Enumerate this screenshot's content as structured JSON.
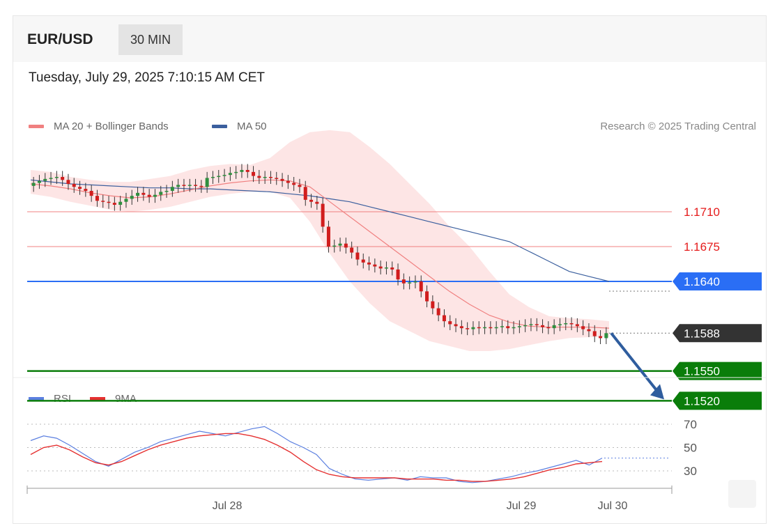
{
  "header": {
    "symbol": "EUR/USD",
    "timeframe": "30 MIN"
  },
  "datetime": "Tuesday, July 29, 2025 7:10:15 AM CET",
  "legend": {
    "ma20_bb": "MA 20 + Bollinger Bands",
    "ma50": "MA 50",
    "credit": "Research © 2025 Trading Central"
  },
  "rsi_legend": {
    "rsi": "RSI",
    "ma9": "9MA"
  },
  "colors": {
    "ma20": "#f08080",
    "ma50": "#3b5f9e",
    "bb_fill": "#fde0e0",
    "bull": "#2f8f3f",
    "bear": "#d11d1d",
    "resistance": "#f08080",
    "pivot": "#2a6ef5",
    "last": "#333333",
    "support": "#0a7d0a",
    "rsi": "#5b7fe0",
    "rsi_ma": "#e53030",
    "arrow": "#2f5d9e"
  },
  "chart_data": [
    {
      "type": "candlestick",
      "title": "EUR/USD",
      "timeframe": "30 MIN",
      "x_ticks": [
        "Jul 28",
        "Jul 29",
        "Jul 30"
      ],
      "levels": [
        {
          "value": 1.171,
          "label": "1.1710",
          "kind": "resistance"
        },
        {
          "value": 1.1675,
          "label": "1.1675",
          "kind": "resistance"
        },
        {
          "value": 1.164,
          "label": "1.1640",
          "kind": "pivot"
        },
        {
          "value": 1.1588,
          "label": "1.1588",
          "kind": "last"
        },
        {
          "value": 1.155,
          "label": "1.1550",
          "kind": "support"
        },
        {
          "value": 1.152,
          "label": "1.1520",
          "kind": "support"
        }
      ],
      "forecast": {
        "from": 1.1588,
        "to": 1.152,
        "direction": "down"
      },
      "closes": [
        1.1739,
        1.1741,
        1.1743,
        1.1744,
        1.1745,
        1.1742,
        1.1738,
        1.1735,
        1.1733,
        1.1731,
        1.1726,
        1.1721,
        1.172,
        1.1719,
        1.1717,
        1.172,
        1.1723,
        1.1726,
        1.1729,
        1.1727,
        1.1725,
        1.1727,
        1.173,
        1.1731,
        1.1735,
        1.1737,
        1.1736,
        1.1737,
        1.1736,
        1.1735,
        1.1744,
        1.1745,
        1.1746,
        1.1747,
        1.1749,
        1.175,
        1.1752,
        1.175,
        1.1746,
        1.1744,
        1.1745,
        1.1744,
        1.1743,
        1.1741,
        1.1739,
        1.1737,
        1.1735,
        1.1722,
        1.172,
        1.1718,
        1.1695,
        1.1675,
        1.1676,
        1.1678,
        1.1674,
        1.1669,
        1.1662,
        1.1659,
        1.1657,
        1.1655,
        1.1653,
        1.1654,
        1.1652,
        1.1642,
        1.1638,
        1.1639,
        1.164,
        1.163,
        1.162,
        1.1613,
        1.1606,
        1.16,
        1.1597,
        1.1595,
        1.1593,
        1.1592,
        1.1594,
        1.1593,
        1.1594,
        1.1593,
        1.1594,
        1.1595,
        1.1593,
        1.1594,
        1.1595,
        1.1596,
        1.1597,
        1.1596,
        1.1594,
        1.1593,
        1.1596,
        1.1597,
        1.1598,
        1.1597,
        1.1595,
        1.1592,
        1.159,
        1.1585,
        1.1583,
        1.1588
      ],
      "ma50": [
        1.1742,
        1.174,
        1.1738,
        1.1737,
        1.1736,
        1.1735,
        1.1734,
        1.1734,
        1.1733,
        1.1733,
        1.1732,
        1.1731,
        1.173,
        1.1728,
        1.1726,
        1.1723,
        1.172,
        1.1715,
        1.171,
        1.1705,
        1.17,
        1.1695,
        1.169,
        1.1685,
        1.168,
        1.167,
        1.166,
        1.165,
        1.1645,
        1.164
      ],
      "ma20": [
        1.1738,
        1.1736,
        1.1733,
        1.1729,
        1.1726,
        1.1724,
        1.1725,
        1.1728,
        1.1732,
        1.1736,
        1.1739,
        1.1741,
        1.1742,
        1.1741,
        1.1735,
        1.172,
        1.1705,
        1.169,
        1.1675,
        1.166,
        1.1645,
        1.163,
        1.1617,
        1.1606,
        1.1599,
        1.1595,
        1.1594,
        1.1594,
        1.1594,
        1.1593
      ],
      "bb_upper": [
        1.1752,
        1.175,
        1.1745,
        1.1742,
        1.174,
        1.174,
        1.1743,
        1.1746,
        1.1752,
        1.1756,
        1.1758,
        1.1757,
        1.1764,
        1.178,
        1.179,
        1.1792,
        1.179,
        1.1775,
        1.1758,
        1.1738,
        1.1718,
        1.1695,
        1.1675,
        1.165,
        1.1627,
        1.1614,
        1.1605,
        1.1603,
        1.1602,
        1.16
      ],
      "bb_lower": [
        1.1728,
        1.1725,
        1.172,
        1.1716,
        1.1712,
        1.171,
        1.1712,
        1.1715,
        1.172,
        1.1725,
        1.1728,
        1.173,
        1.173,
        1.1724,
        1.17,
        1.1668,
        1.164,
        1.1618,
        1.16,
        1.159,
        1.158,
        1.1575,
        1.157,
        1.157,
        1.1572,
        1.1576,
        1.158,
        1.1583,
        1.1584,
        1.1584
      ]
    },
    {
      "type": "line",
      "title": "RSI",
      "series": [
        {
          "name": "RSI",
          "values": [
            56,
            60,
            58,
            52,
            45,
            38,
            34,
            40,
            46,
            50,
            55,
            58,
            61,
            64,
            62,
            60,
            63,
            66,
            68,
            62,
            55,
            50,
            44,
            32,
            27,
            23,
            22,
            23,
            24,
            22,
            25,
            24,
            24,
            21,
            20,
            21,
            23,
            25,
            28,
            30,
            33,
            36,
            39,
            35,
            41
          ]
        },
        {
          "name": "9MA",
          "values": [
            44,
            50,
            52,
            48,
            42,
            37,
            35,
            38,
            43,
            48,
            52,
            55,
            58,
            60,
            61,
            62,
            62,
            60,
            57,
            52,
            46,
            38,
            31,
            27,
            25,
            24,
            24,
            24,
            24,
            23,
            23,
            23,
            22,
            22,
            21,
            21,
            22,
            23,
            25,
            28,
            31,
            33,
            36,
            37,
            38
          ]
        }
      ],
      "yticks": [
        70,
        50,
        30
      ],
      "ylim": [
        10,
        90
      ]
    }
  ]
}
